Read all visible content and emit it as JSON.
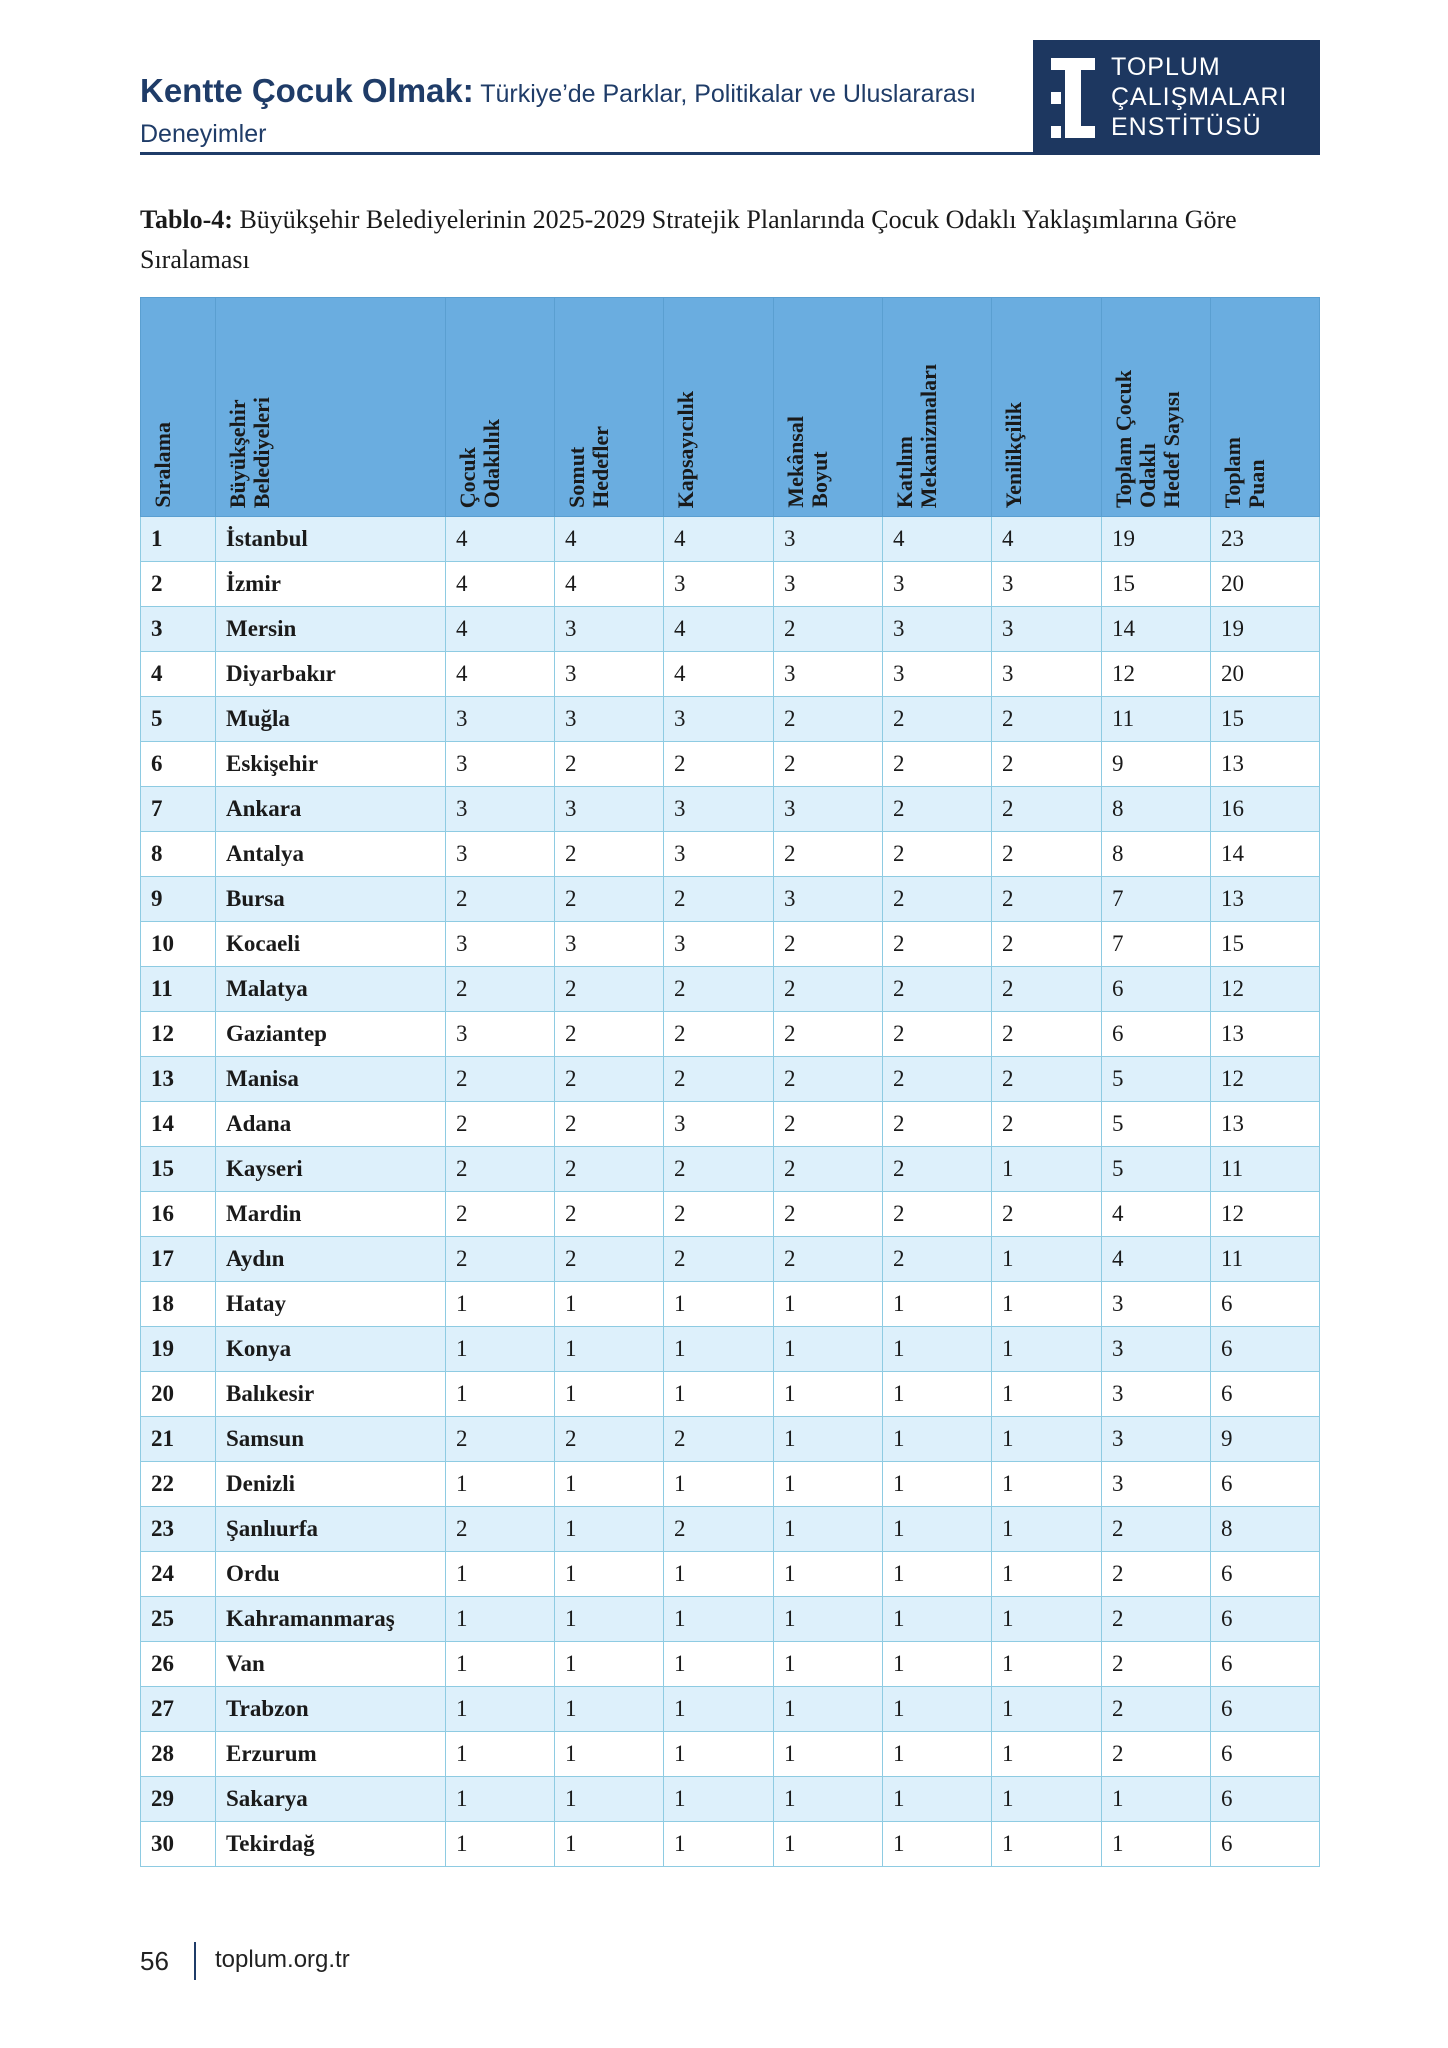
{
  "header": {
    "title_bold": "Kentte Çocuk Olmak:",
    "title_rest": " Türkiye’de Parklar, Politikalar ve Uluslararası Deneyimler",
    "logo_lines": [
      "TOPLUM",
      "ÇALIŞMALARI",
      "ENSTİTÜSÜ"
    ]
  },
  "caption": {
    "label": "Tablo-4:",
    "text": " Büyükşehir Belediyelerinin 2025-2029 Stratejik Planlarında Çocuk Odaklı Yaklaşımlarına Göre Sıralaması"
  },
  "colors": {
    "navy": "#1f3c68",
    "header_blue": "#6aade0",
    "row_tint": "#ddf0fb"
  },
  "table": {
    "columns": [
      "Sıralama",
      "Büyükşehir\nBelediyeleri",
      "Çocuk\nOdaklılık",
      "Somut\nHedefler",
      "Kapsayıcılık",
      "Mekânsal\nBoyut",
      "Katılım\nMekanizmaları",
      "Yenilikçilik",
      "Toplam Çocuk\nOdaklı\nHedef Sayısı",
      "Toplam\nPuan"
    ],
    "rows": [
      [
        "1",
        "İstanbul",
        "4",
        "4",
        "4",
        "3",
        "4",
        "4",
        "19",
        "23"
      ],
      [
        "2",
        "İzmir",
        "4",
        "4",
        "3",
        "3",
        "3",
        "3",
        "15",
        "20"
      ],
      [
        "3",
        "Mersin",
        "4",
        "3",
        "4",
        "2",
        "3",
        "3",
        "14",
        "19"
      ],
      [
        "4",
        "Diyarbakır",
        "4",
        "3",
        "4",
        "3",
        "3",
        "3",
        "12",
        "20"
      ],
      [
        "5",
        "Muğla",
        "3",
        "3",
        "3",
        "2",
        "2",
        "2",
        "11",
        "15"
      ],
      [
        "6",
        "Eskişehir",
        "3",
        "2",
        "2",
        "2",
        "2",
        "2",
        "9",
        "13"
      ],
      [
        "7",
        "Ankara",
        "3",
        "3",
        "3",
        "3",
        "2",
        "2",
        "8",
        "16"
      ],
      [
        "8",
        "Antalya",
        "3",
        "2",
        "3",
        "2",
        "2",
        "2",
        "8",
        "14"
      ],
      [
        "9",
        "Bursa",
        "2",
        "2",
        "2",
        "3",
        "2",
        "2",
        "7",
        "13"
      ],
      [
        "10",
        "Kocaeli",
        "3",
        "3",
        "3",
        "2",
        "2",
        "2",
        "7",
        "15"
      ],
      [
        "11",
        "Malatya",
        "2",
        "2",
        "2",
        "2",
        "2",
        "2",
        "6",
        "12"
      ],
      [
        "12",
        "Gaziantep",
        "3",
        "2",
        "2",
        "2",
        "2",
        "2",
        "6",
        "13"
      ],
      [
        "13",
        "Manisa",
        "2",
        "2",
        "2",
        "2",
        "2",
        "2",
        "5",
        "12"
      ],
      [
        "14",
        "Adana",
        "2",
        "2",
        "3",
        "2",
        "2",
        "2",
        "5",
        "13"
      ],
      [
        "15",
        "Kayseri",
        "2",
        "2",
        "2",
        "2",
        "2",
        "1",
        "5",
        "11"
      ],
      [
        "16",
        "Mardin",
        "2",
        "2",
        "2",
        "2",
        "2",
        "2",
        "4",
        "12"
      ],
      [
        "17",
        "Aydın",
        "2",
        "2",
        "2",
        "2",
        "2",
        "1",
        "4",
        "11"
      ],
      [
        "18",
        "Hatay",
        "1",
        "1",
        "1",
        "1",
        "1",
        "1",
        "3",
        "6"
      ],
      [
        "19",
        "Konya",
        "1",
        "1",
        "1",
        "1",
        "1",
        "1",
        "3",
        "6"
      ],
      [
        "20",
        "Balıkesir",
        "1",
        "1",
        "1",
        "1",
        "1",
        "1",
        "3",
        "6"
      ],
      [
        "21",
        "Samsun",
        "2",
        "2",
        "2",
        "1",
        "1",
        "1",
        "3",
        "9"
      ],
      [
        "22",
        "Denizli",
        "1",
        "1",
        "1",
        "1",
        "1",
        "1",
        "3",
        "6"
      ],
      [
        "23",
        "Şanlıurfa",
        "2",
        "1",
        "2",
        "1",
        "1",
        "1",
        "2",
        "8"
      ],
      [
        "24",
        "Ordu",
        "1",
        "1",
        "1",
        "1",
        "1",
        "1",
        "2",
        "6"
      ],
      [
        "25",
        "Kahramanmaraş",
        "1",
        "1",
        "1",
        "1",
        "1",
        "1",
        "2",
        "6"
      ],
      [
        "26",
        "Van",
        "1",
        "1",
        "1",
        "1",
        "1",
        "1",
        "2",
        "6"
      ],
      [
        "27",
        "Trabzon",
        "1",
        "1",
        "1",
        "1",
        "1",
        "1",
        "2",
        "6"
      ],
      [
        "28",
        "Erzurum",
        "1",
        "1",
        "1",
        "1",
        "1",
        "1",
        "2",
        "6"
      ],
      [
        "29",
        "Sakarya",
        "1",
        "1",
        "1",
        "1",
        "1",
        "1",
        "1",
        "6"
      ],
      [
        "30",
        "Tekirdağ",
        "1",
        "1",
        "1",
        "1",
        "1",
        "1",
        "1",
        "6"
      ]
    ]
  },
  "footer": {
    "page_number": "56",
    "url": "toplum.org.tr"
  }
}
